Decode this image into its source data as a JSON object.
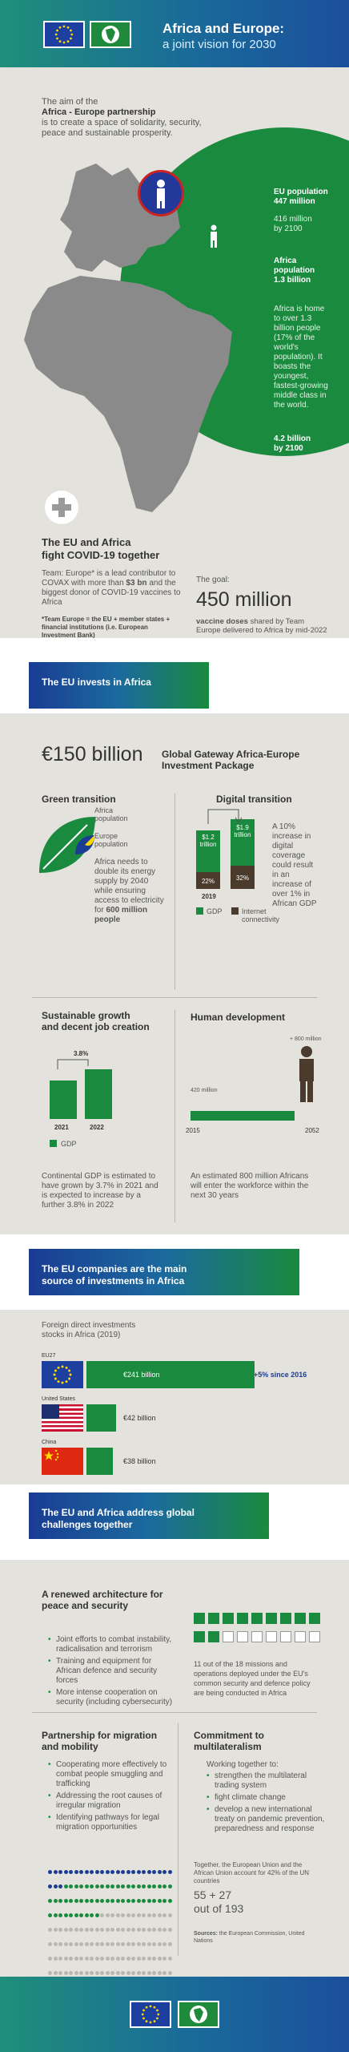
{
  "header": {
    "title": "Africa and Europe:",
    "subtitle": "a joint vision for 2030"
  },
  "intro": {
    "aim_prefix": "The aim of the",
    "aim_bold": "Africa - Europe partnership",
    "aim_suffix": "is to create a space of solidarity, security, peace and sustainable prosperity."
  },
  "population": {
    "eu_label": "EU population",
    "eu_value": "447 million",
    "eu_2100": "416 million",
    "eu_2100_label": "by 2100",
    "africa_label": "Africa population",
    "africa_value": "1.3 billion",
    "africa_text": "Africa is home to over 1.3 billion people (17% of the world's population). It boasts the youngest, fastest-growing middle class in the world.",
    "africa_2100": "4.2 billion",
    "africa_2100_label": "by 2100"
  },
  "covid": {
    "title_line1": "The EU and Africa",
    "title_line2": "fight COVID-19 together",
    "text_prefix": "Team: Europe* is a lead contributor to COVAX with more than",
    "text_bold": "$3 bn",
    "text_suffix": "and the biggest donor of COVID-19 vaccines to Africa",
    "note": "*Team Europe = the EU + member states + financial institutions (i.e. European Investment Bank)",
    "goal_label": "The goal:",
    "goal_value": "450 million",
    "goal_bold": "vaccine doses",
    "goal_text": "shared by Team Europe delivered to Africa by mid-2022"
  },
  "invest_band": {
    "title": "The EU invests in Africa"
  },
  "gateway": {
    "amount": "€150 billion",
    "title_line1": "Global Gateway Africa-Europe",
    "title_line2": "Investment Package"
  },
  "green": {
    "title": "Green transition",
    "africa_label_l1": "Africa",
    "africa_label_l2": "population",
    "europe_label_l1": "Europe",
    "europe_label_l2": "population",
    "text": "Africa needs to double its energy supply by 2040 while ensuring access to electricity for",
    "text_bold": "600 million people"
  },
  "digital": {
    "title": "Digital transition",
    "bar1_value": "$1.2 trillion",
    "bar2_value": "$1.9 trillion",
    "bar1_share": "22%",
    "bar2_share": "32%",
    "year": "2019",
    "text": "A 10% increase in digital coverage could result in an increase of over 1% in African GDP",
    "legend_gdp": "GDP",
    "legend_internet": "Internet connectivity"
  },
  "growth": {
    "title_line1": "Sustainable growth",
    "title_line2": "and decent job creation",
    "increase_label": "3.8%",
    "year1": "2021",
    "year2": "2022",
    "legend": "GDP",
    "text": "Continental GDP is estimated to have grown by 3.7% in 2021 and is expected to increase by a further 3.8% in 2022"
  },
  "human": {
    "title": "Human development",
    "start_value": "420 million",
    "end_value": "+ 800 million",
    "year_start": "2015",
    "year_end": "2052",
    "text": "An estimated 800 million Africans will enter the workforce within the next 30 years"
  },
  "companies_band": {
    "title_line1": "The EU companies are the main",
    "title_line2": "source of investments in Africa"
  },
  "fdi": {
    "title_line1": "Foreign direct investments",
    "title_line2": "stocks in Africa (2019)",
    "rows": [
      {
        "label": "EU27",
        "value": "€241 billion",
        "share": 0.6
      },
      {
        "label": "United States",
        "value": "€42 billion",
        "share": 0.105
      },
      {
        "label": "China",
        "value": "€38 billion",
        "share": 0.095
      }
    ],
    "growth": "+5% since 2016"
  },
  "challenges_band": {
    "title_line1": "The EU and Africa address global",
    "title_line2": "challenges together"
  },
  "peace": {
    "title_line1": "A renewed architecture for",
    "title_line2": "peace and security",
    "bullets": [
      "Joint efforts to combat instability, radicalisation and terrorism",
      "Training and equipment for African defence and security forces",
      "More intense cooperation on security (including cybersecurity)"
    ],
    "missions_text": "11 out of the 18 missions and operations deployed under the EU's common security and defence policy are being conducted in Africa",
    "missions_total": 18,
    "missions_filled": 11
  },
  "migration": {
    "title_line1": "Partnership for migration",
    "title_line2": "and mobility",
    "bullets": [
      "Cooperating more effectively to combat people smuggling and trafficking",
      "Addressing the root causes of irregular migration",
      "Identifying pathways for legal migration opportunities"
    ]
  },
  "multilateral": {
    "title_line1": "Commitment to",
    "title_line2": "multilateralism",
    "intro": "Working together to:",
    "bullets": [
      "strengthen the multilateral trading system",
      "fight climate change",
      "develop a new international treaty on pandemic prevention, preparedness and response"
    ],
    "stat_text": "Together, the European Union and the African Union account for 42% of the UN countries",
    "stat_value": "55 + 27",
    "stat_total": "out of 193",
    "dots_total": 193,
    "dots_eu": 27,
    "dots_au": 55
  },
  "sources": {
    "label": "Sources:",
    "text": "the European Commission, United Nations"
  },
  "colors": {
    "green": "#1a8a3e",
    "blue": "#1a3c93",
    "brown": "#4a3b2c",
    "bg": "#e4e2dc"
  }
}
